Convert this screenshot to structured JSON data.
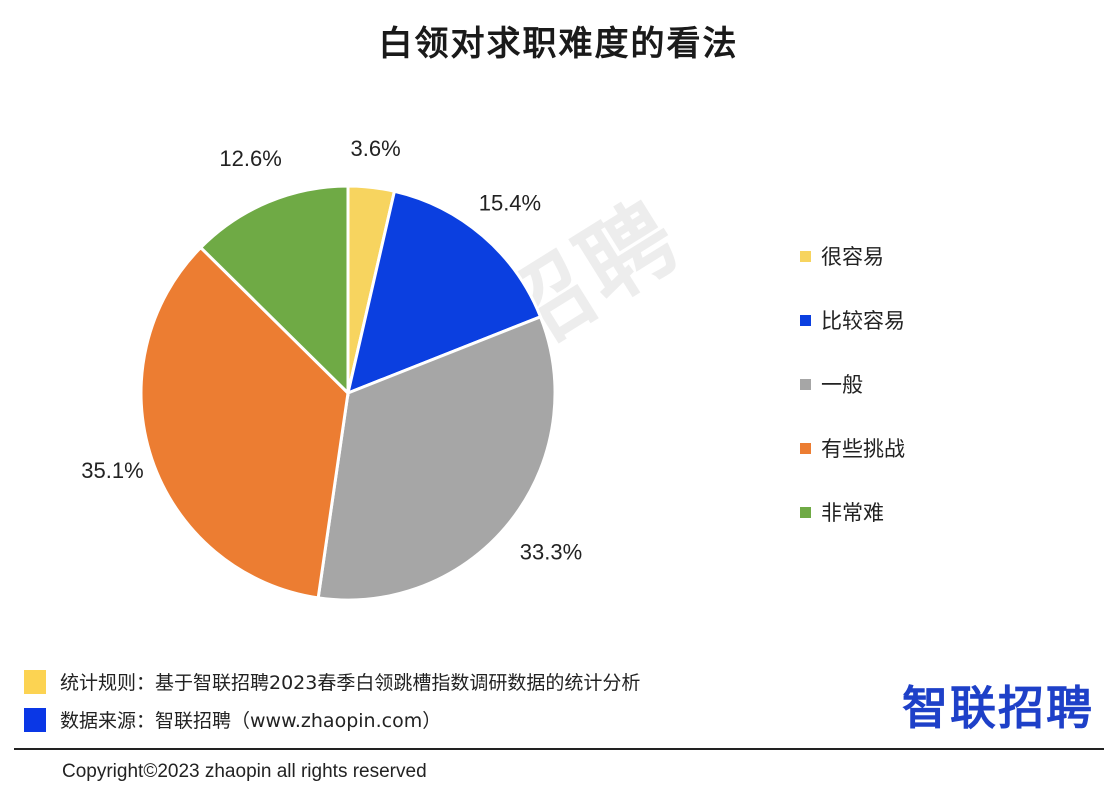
{
  "chart_data": {
    "type": "pie",
    "title": "白领对求职难度的看法",
    "categories": [
      "很容易",
      "比较容易",
      "一般",
      "有些挑战",
      "非常难"
    ],
    "values": [
      3.6,
      15.4,
      33.3,
      35.1,
      12.6
    ],
    "value_labels": [
      "3.6%",
      "15.4%",
      "33.3%",
      "35.1%",
      "12.6%"
    ],
    "colors": [
      "#f7d45f",
      "#0b3fe0",
      "#a6a6a6",
      "#ec7d32",
      "#6faa45"
    ],
    "start_angle": "12 o'clock",
    "direction": "clockwise",
    "legend_position": "right"
  },
  "footer": {
    "rule_label": "统计规则：基于智联招聘2023春季白领跳槽指数调研数据的统计分析",
    "rule_color": "#fcd352",
    "source_label": "数据来源：智联招聘（www.zhaopin.com）",
    "source_color": "#0a37e6",
    "brand": "智联招聘",
    "copyright": "Copyright©2023 zhaopin all rights reserved"
  },
  "watermark": "智联招聘"
}
